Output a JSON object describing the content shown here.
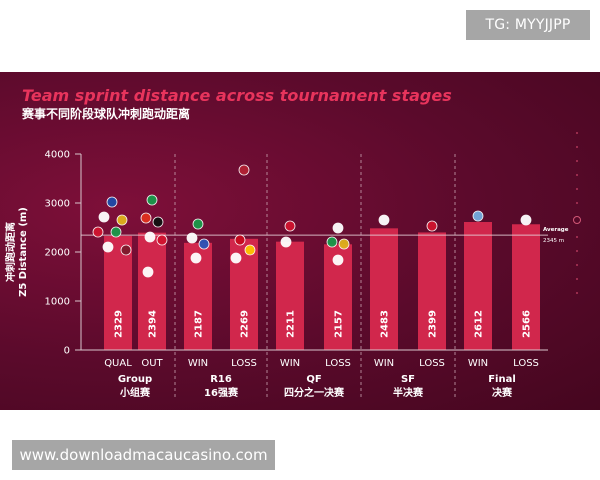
{
  "overlays": {
    "tg_label": "TG: MYYJJPP",
    "watermark": "www.downloadmacaucasino.com"
  },
  "colors": {
    "background": "#5a0a2b",
    "bar": "#d1274c",
    "title": "#e8345c",
    "text": "#ffffff"
  },
  "chart_data": {
    "type": "bar",
    "title": "Team sprint distance across tournament stages",
    "subtitle": "赛事不同阶段球队冲刺跑动距离",
    "ylabel": "冲刺跑动距离\nZ5 Distance (m)",
    "ylim": [
      0,
      4000
    ],
    "yticks": [
      0,
      1000,
      2000,
      3000,
      4000
    ],
    "grid": false,
    "categories": [
      "QUAL",
      "OUT",
      "WIN",
      "LOSS",
      "WIN",
      "LOSS",
      "WIN",
      "LOSS",
      "WIN",
      "LOSS"
    ],
    "values": [
      2329,
      2394,
      2187,
      2269,
      2211,
      2157,
      2483,
      2399,
      2612,
      2566
    ],
    "groups": [
      {
        "label": "Group",
        "label_cn": "小组赛",
        "count": 2
      },
      {
        "label": "R16",
        "label_cn": "16强赛",
        "count": 2
      },
      {
        "label": "QF",
        "label_cn": "四分之一决赛",
        "count": 2
      },
      {
        "label": "SF",
        "label_cn": "半决赛",
        "count": 2
      },
      {
        "label": "Final",
        "label_cn": "决赛",
        "count": 2
      }
    ],
    "reference_line": {
      "value": 2345,
      "label": "Average",
      "value_label": "2345 m"
    }
  }
}
